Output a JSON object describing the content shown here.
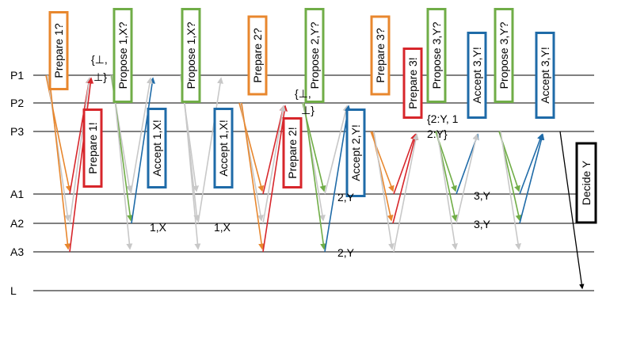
{
  "rows": [
    "P1",
    "P2",
    "P3",
    "A1",
    "A2",
    "A3",
    "L"
  ],
  "colors": {
    "orange": "#E8872E",
    "red": "#D7262B",
    "green": "#70AD47",
    "blue": "#1F6BA8",
    "gray": "#C8C8C8",
    "black": "#000000"
  },
  "boxes": [
    {
      "text": "Prepare 1?",
      "color": "#E8872E"
    },
    {
      "text": "Prepare 1!",
      "color": "#D7262B"
    },
    {
      "text": "Propose 1,X?",
      "color": "#70AD47"
    },
    {
      "text": "Accept 1,X!",
      "color": "#1F6BA8"
    },
    {
      "text": "Propose 1,X?",
      "color": "#70AD47"
    },
    {
      "text": "Accept 1,X!",
      "color": "#1F6BA8"
    },
    {
      "text": "Prepare 2?",
      "color": "#E8872E"
    },
    {
      "text": "Prepare 2!",
      "color": "#D7262B"
    },
    {
      "text": "Propose 2,Y?",
      "color": "#70AD47"
    },
    {
      "text": "Accept 2,Y!",
      "color": "#1F6BA8"
    },
    {
      "text": "Prepare 3?",
      "color": "#E8872E"
    },
    {
      "text": "Prepare 3!",
      "color": "#D7262B"
    },
    {
      "text": "Propose 3,Y?",
      "color": "#70AD47"
    },
    {
      "text": "Accept 3,Y!",
      "color": "#1F6BA8"
    },
    {
      "text": "Propose 3,Y?",
      "color": "#70AD47"
    },
    {
      "text": "Accept 3,Y!",
      "color": "#1F6BA8"
    },
    {
      "text": "Decide Y",
      "color": "#000000"
    }
  ],
  "annotations": [
    {
      "text": "{⊥,"
    },
    {
      "text": "⊥}"
    },
    {
      "text": "1,X"
    },
    {
      "text": "1,X"
    },
    {
      "text": "{⊥,"
    },
    {
      "text": "⊥}"
    },
    {
      "text": "2,Y"
    },
    {
      "text": "2,Y"
    },
    {
      "text": "{2:Y, 1"
    },
    {
      "text": "2:Y}"
    },
    {
      "text": "3,Y"
    },
    {
      "text": "3,Y"
    }
  ]
}
